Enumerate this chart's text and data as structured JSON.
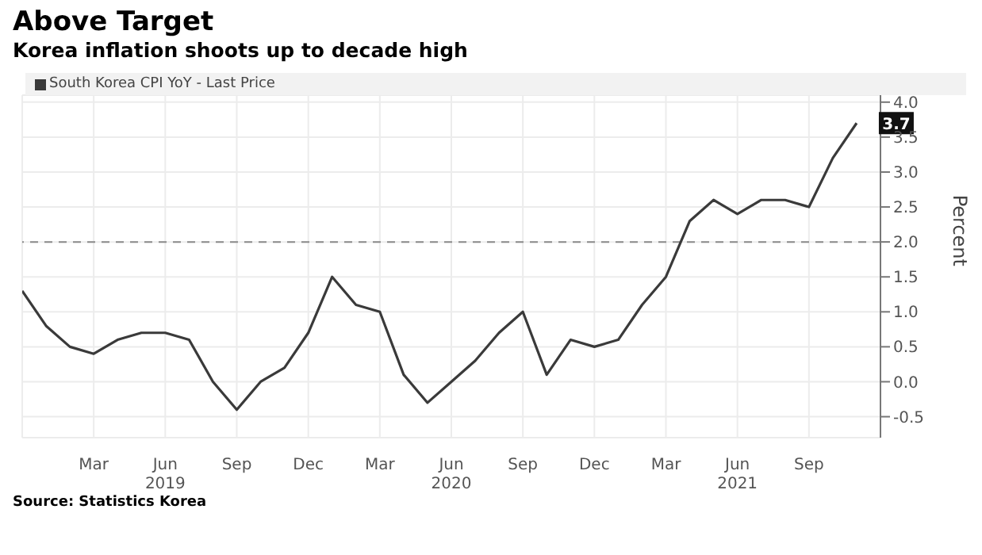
{
  "chart_data": {
    "type": "line",
    "title": "Above Target",
    "subtitle": "Korea inflation shoots up to decade high",
    "ylabel": "Percent",
    "x": [
      "2018-12",
      "2019-01",
      "2019-02",
      "2019-03",
      "2019-04",
      "2019-05",
      "2019-06",
      "2019-07",
      "2019-08",
      "2019-09",
      "2019-10",
      "2019-11",
      "2019-12",
      "2020-01",
      "2020-02",
      "2020-03",
      "2020-04",
      "2020-05",
      "2020-06",
      "2020-07",
      "2020-08",
      "2020-09",
      "2020-10",
      "2020-11",
      "2020-12",
      "2021-01",
      "2021-02",
      "2021-03",
      "2021-04",
      "2021-05",
      "2021-06",
      "2021-07",
      "2021-08",
      "2021-09",
      "2021-10",
      "2021-11"
    ],
    "series": [
      {
        "name": "South Korea CPI YoY - Last Price",
        "color": "#3a3a3a",
        "values": [
          1.3,
          0.8,
          0.5,
          0.4,
          0.6,
          0.7,
          0.7,
          0.6,
          0.0,
          -0.4,
          0.0,
          0.2,
          0.7,
          1.5,
          1.1,
          1.0,
          0.1,
          -0.3,
          0.0,
          0.3,
          0.7,
          1.0,
          0.1,
          0.6,
          0.5,
          0.6,
          1.1,
          1.5,
          2.3,
          2.6,
          2.4,
          2.6,
          2.6,
          2.5,
          3.2,
          3.7
        ]
      }
    ],
    "xlim": [
      "2018-12",
      "2021-12"
    ],
    "xticks": [
      {
        "value": "2019-03",
        "label": "Mar"
      },
      {
        "value": "2019-06",
        "label": "Jun\n2019"
      },
      {
        "value": "2019-09",
        "label": "Sep"
      },
      {
        "value": "2019-12",
        "label": "Dec"
      },
      {
        "value": "2020-03",
        "label": "Mar"
      },
      {
        "value": "2020-06",
        "label": "Jun\n2020"
      },
      {
        "value": "2020-09",
        "label": "Sep"
      },
      {
        "value": "2020-12",
        "label": "Dec"
      },
      {
        "value": "2021-03",
        "label": "Mar"
      },
      {
        "value": "2021-06",
        "label": "Jun\n2021"
      },
      {
        "value": "2021-09",
        "label": "Sep"
      }
    ],
    "ylim": [
      -0.8,
      4.1
    ],
    "yticks": [
      {
        "value": -0.5,
        "label": "-0.5"
      },
      {
        "value": 0,
        "label": "0.0"
      },
      {
        "value": 0.5,
        "label": "0.5"
      },
      {
        "value": 1,
        "label": "1.0"
      },
      {
        "value": 1.5,
        "label": "1.5"
      },
      {
        "value": 2,
        "label": "2.0"
      },
      {
        "value": 2.5,
        "label": "2.5"
      },
      {
        "value": 3,
        "label": "3.0"
      },
      {
        "value": 3.5,
        "label": "3.5"
      },
      {
        "value": 4,
        "label": "4.0"
      }
    ],
    "ref_lines": [
      {
        "axis": "y",
        "value": 2,
        "color": "#8a8a8a",
        "line_style": "dashed"
      }
    ],
    "annotations": [
      {
        "text": "3.7",
        "x": "2021-11",
        "y": 3.7
      },
      "Source: Statistics Korea"
    ],
    "grid": true,
    "legend": "top left",
    "marker": "none",
    "line_style": "solid"
  }
}
